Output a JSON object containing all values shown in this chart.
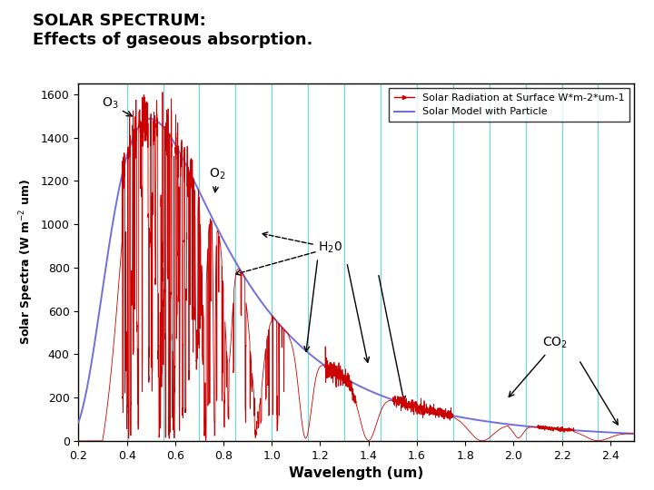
{
  "title_line1": "SOLAR SPECTRUM:",
  "title_line2": "Effects of gaseous absorption.",
  "xlabel": "Wavelength (um)",
  "ylabel": "Solar Spectra (W m⁻² um)",
  "xlim": [
    0.2,
    2.5
  ],
  "ylim": [
    0,
    1650
  ],
  "yticks": [
    0,
    200,
    400,
    600,
    800,
    1000,
    1200,
    1400,
    1600
  ],
  "xticks": [
    0.2,
    0.4,
    0.6,
    0.8,
    1.0,
    1.2,
    1.4,
    1.6,
    1.8,
    2.0,
    2.2,
    2.4
  ],
  "vertical_lines": [
    0.4,
    0.55,
    0.7,
    0.85,
    1.0,
    1.15,
    1.3,
    1.45,
    1.6,
    1.75,
    1.9,
    2.05,
    2.2,
    2.35
  ],
  "vline_color": "#55CCCC",
  "vline_alpha": 0.8,
  "smooth_color": "#7070DD",
  "measured_color": "#CC0000",
  "legend_entries": [
    "Solar Radiation at Surface W*m-2*um-1",
    "Solar Model with Particle"
  ],
  "background_color": "#FFFFFF",
  "plot_bg_color": "#FFFFFF",
  "title_fontsize": 13,
  "ylabel_text": "Solar Spectra (W m-2 um)"
}
